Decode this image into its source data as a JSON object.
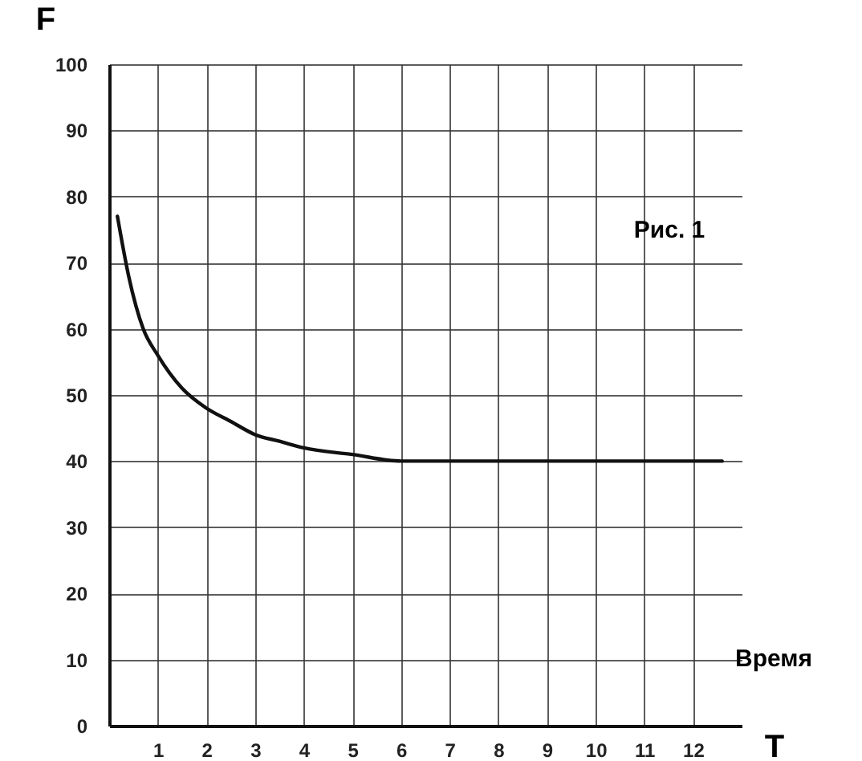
{
  "chart_data": {
    "type": "line",
    "xlabel": "T",
    "ylabel": "F",
    "annotations": [
      "Рис. 1",
      "Время"
    ],
    "x": [
      0.17,
      0.4,
      0.7,
      1,
      1.5,
      2,
      2.5,
      3,
      3.5,
      4,
      5,
      6,
      12.6
    ],
    "series": [
      {
        "color": "#111111",
        "values": [
          77,
          68,
          60,
          56,
          51,
          48,
          46,
          44,
          43,
          42,
          41,
          40,
          40
        ]
      }
    ],
    "xlim": [
      0,
      13
    ],
    "ylim": [
      0,
      100
    ],
    "xticks": [
      1,
      2,
      3,
      4,
      5,
      6,
      7,
      8,
      9,
      10,
      11,
      12
    ],
    "yticks": [
      0,
      10,
      20,
      30,
      40,
      50,
      60,
      70,
      80,
      90,
      100
    ],
    "grid": true,
    "marker": "none",
    "line_style": "solid",
    "legend": false
  }
}
